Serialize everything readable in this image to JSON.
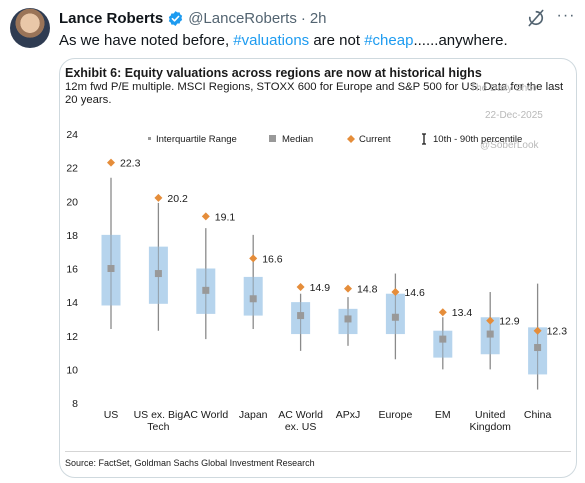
{
  "tweet": {
    "author_name": "Lance Roberts",
    "handle": "@LanceRoberts",
    "separator": "·",
    "time": "2h",
    "text_before": "As we have noted before, ",
    "hashtag_1": "#valuations",
    "text_middle": " are not ",
    "hashtag_2": "#cheap",
    "text_after": "......anywhere."
  },
  "icons": {
    "avatar": "profile-photo",
    "verified": "verified-badge-icon",
    "grok": "grok-icon",
    "more": "more-options-icon"
  },
  "colors": {
    "hashtag": "#1d9bf0",
    "verified": "#1d9bf0",
    "box": "#a9cdea",
    "median": "#999999",
    "current": "#e58d3a",
    "whisker": "#8a8a8a"
  },
  "card": {
    "title": "Exhibit 6: Equity valuations across regions are now at historical highs",
    "subtitle": "12m fwd P/E multiple. MSCI Regions, STOXX 600 for Europe and S&P 500 for US. Data for the last 20 years.",
    "watermark_brand": "The Daily Shot",
    "watermark_date": "22-Dec-2025",
    "watermark_handle": "@SoberLook",
    "source": "Source: FactSet, Goldman Sachs Global Investment Research"
  },
  "chart_data": {
    "type": "boxplot",
    "legend": [
      "Interquartile Range",
      "Median",
      "Current",
      "10th - 90th percentile"
    ],
    "legend_placement": "top",
    "ylim": [
      8,
      24
    ],
    "yticks": [
      8,
      10,
      12,
      14,
      16,
      18,
      20,
      22,
      24
    ],
    "grid": false,
    "categories": [
      "US",
      "US ex. Big Tech",
      "AC World",
      "Japan",
      "AC World ex. US",
      "APxJ",
      "Europe",
      "EM",
      "United Kingdom",
      "China"
    ],
    "category_labels": [
      [
        "US"
      ],
      [
        "US ex. Big",
        "Tech"
      ],
      [
        "AC World"
      ],
      [
        "Japan"
      ],
      [
        "AC World",
        "ex. US"
      ],
      [
        "APxJ"
      ],
      [
        "Europe"
      ],
      [
        "EM"
      ],
      [
        "United",
        "Kingdom"
      ],
      [
        "China"
      ]
    ],
    "p10": [
      12.4,
      12.3,
      11.8,
      12.4,
      11.1,
      11.4,
      10.6,
      10.0,
      10.0,
      8.8
    ],
    "q1": [
      13.8,
      13.9,
      13.3,
      13.2,
      12.1,
      12.1,
      12.1,
      10.7,
      10.9,
      9.7
    ],
    "median": [
      16.0,
      15.7,
      14.7,
      14.2,
      13.2,
      13.0,
      13.1,
      11.8,
      12.1,
      11.3
    ],
    "q3": [
      18.0,
      17.3,
      16.0,
      15.5,
      14.0,
      13.6,
      14.5,
      12.3,
      13.1,
      12.5
    ],
    "p90": [
      21.4,
      19.9,
      18.4,
      18.0,
      14.5,
      14.3,
      15.7,
      13.1,
      14.6,
      15.1
    ],
    "current": [
      22.3,
      20.2,
      19.1,
      16.6,
      14.9,
      14.8,
      14.6,
      13.4,
      12.9,
      12.3
    ],
    "current_labels": [
      "22.3",
      "20.2",
      "19.1",
      "16.6",
      "14.9",
      "14.8",
      "14.6",
      "13.4",
      "12.9",
      "12.3"
    ]
  }
}
